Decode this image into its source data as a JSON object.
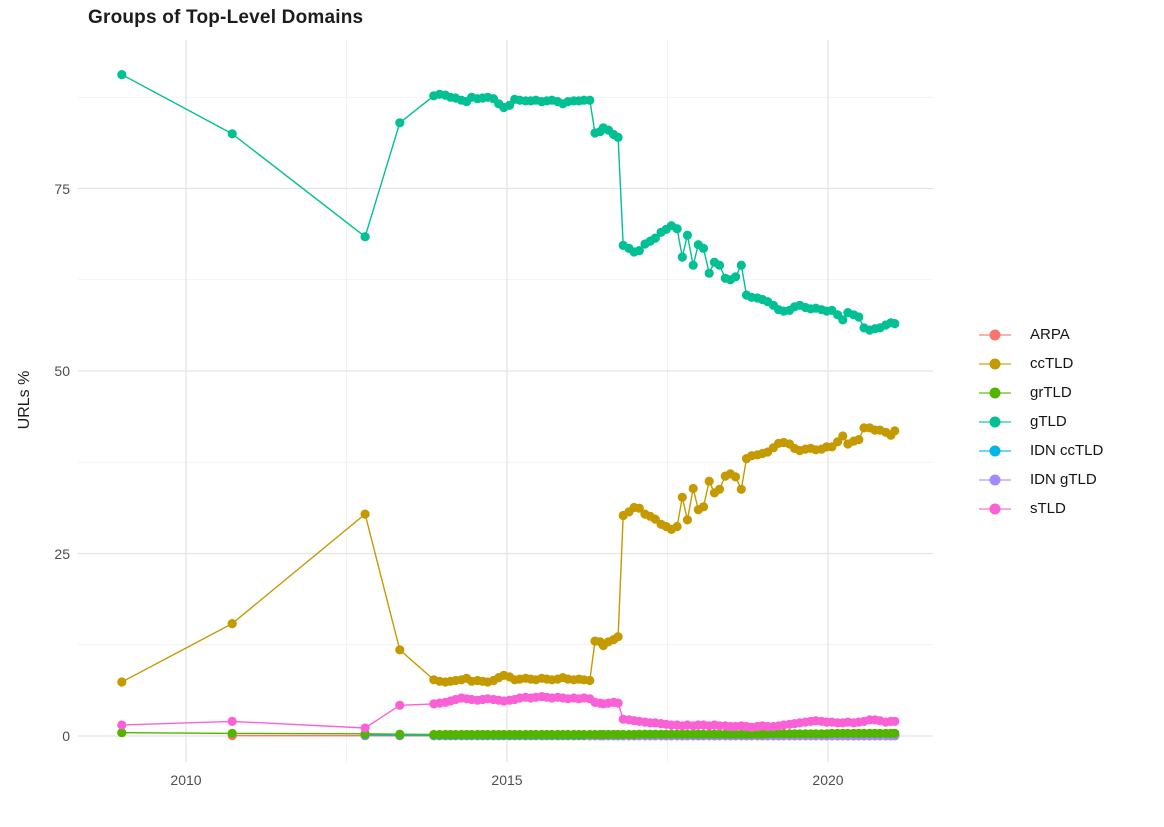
{
  "title": "Groups of Top-Level Domains",
  "axes": {
    "y_label": "URLs %",
    "y_ticks": [
      "0",
      "25",
      "50",
      "75"
    ],
    "x_ticks": [
      "2010",
      "2015",
      "2020"
    ]
  },
  "legend": {
    "items": [
      {
        "label": "ARPA",
        "color": "#F8766D"
      },
      {
        "label": "ccTLD",
        "color": "#C49A00"
      },
      {
        "label": "grTLD",
        "color": "#53B400"
      },
      {
        "label": "gTLD",
        "color": "#00C094"
      },
      {
        "label": "IDN ccTLD",
        "color": "#00B6EB"
      },
      {
        "label": "IDN gTLD",
        "color": "#A58AFF"
      },
      {
        "label": "sTLD",
        "color": "#FB61D7"
      }
    ]
  },
  "chart_data": {
    "type": "line",
    "title": "Groups of Top-Level Domains",
    "xlabel": "",
    "ylabel": "URLs %",
    "xlim": [
      2008.3,
      2021.6
    ],
    "ylim": [
      -3.5,
      95.3
    ],
    "x_tick_values": [
      2010,
      2015,
      2020
    ],
    "x_minor_ticks": [
      2012.5,
      2017.5
    ],
    "y_tick_values": [
      0,
      25,
      50,
      75
    ],
    "y_minor_ticks": [
      12.5,
      37.5,
      62.5,
      87.5
    ],
    "grid": true,
    "legend_position": "right",
    "marker": "point",
    "x": [
      2009.0,
      2010.72,
      2012.79,
      2013.33,
      2013.86,
      2013.95,
      2014.04,
      2014.12,
      2014.2,
      2014.29,
      2014.37,
      2014.45,
      2014.54,
      2014.62,
      2014.7,
      2014.79,
      2014.87,
      2014.95,
      2015.04,
      2015.12,
      2015.2,
      2015.29,
      2015.37,
      2015.45,
      2015.54,
      2015.62,
      2015.7,
      2015.79,
      2015.87,
      2015.95,
      2016.04,
      2016.12,
      2016.2,
      2016.29,
      2016.37,
      2016.45,
      2016.5,
      2016.58,
      2016.66,
      2016.73,
      2016.81,
      2016.9,
      2016.98,
      2017.06,
      2017.15,
      2017.23,
      2017.31,
      2017.4,
      2017.48,
      2017.56,
      2017.65,
      2017.73,
      2017.81,
      2017.9,
      2017.98,
      2018.06,
      2018.15,
      2018.23,
      2018.31,
      2018.4,
      2018.48,
      2018.56,
      2018.65,
      2018.73,
      2018.81,
      2018.9,
      2018.98,
      2019.06,
      2019.15,
      2019.23,
      2019.31,
      2019.4,
      2019.48,
      2019.56,
      2019.65,
      2019.73,
      2019.81,
      2019.9,
      2019.98,
      2020.06,
      2020.15,
      2020.23,
      2020.31,
      2020.4,
      2020.48,
      2020.56,
      2020.65,
      2020.73,
      2020.81,
      2020.9,
      2020.98,
      2021.04
    ],
    "series": [
      {
        "name": "ARPA",
        "color": "#F8766D",
        "values": [
          null,
          0.05,
          0.04,
          0.03,
          0.03,
          0.03,
          0.03,
          0.03,
          0.03,
          0.03,
          0.03,
          0.03,
          0.03,
          0.03,
          0.03,
          0.03,
          0.03,
          0.03,
          0.03,
          0.03,
          0.03,
          0.03,
          0.03,
          0.03,
          0.03,
          0.03,
          0.03,
          0.03,
          0.03,
          0.03,
          0.03,
          0.03,
          0.03,
          0.03,
          0.03,
          0.03,
          0.03,
          0.03,
          0.03,
          0.03,
          0.03,
          0.03,
          0.03,
          0.03,
          0.03,
          0.03,
          0.03,
          0.03,
          0.03,
          0.03,
          0.03,
          0.03,
          0.03,
          0.03,
          0.03,
          0.03,
          0.03,
          0.03,
          0.03,
          0.03,
          0.03,
          0.03,
          0.03,
          0.03,
          0.03,
          0.03,
          0.03,
          0.03,
          0.03,
          0.03,
          0.03,
          0.03,
          0.03,
          0.03,
          0.03,
          0.03,
          0.03,
          0.03,
          0.03,
          0.03,
          0.03,
          0.03,
          0.03,
          0.03,
          0.03,
          0.03,
          0.03,
          0.03,
          0.03,
          0.03,
          0.03,
          0.03
        ]
      },
      {
        "name": "ccTLD",
        "color": "#C49A00",
        "values": [
          7.4,
          15.4,
          30.4,
          11.8,
          7.7,
          7.5,
          7.4,
          7.5,
          7.6,
          7.7,
          7.9,
          7.5,
          7.6,
          7.5,
          7.4,
          7.6,
          8.0,
          8.3,
          8.1,
          7.7,
          7.8,
          7.9,
          7.8,
          7.7,
          7.9,
          7.8,
          7.7,
          7.8,
          8.0,
          7.8,
          7.7,
          7.8,
          7.7,
          7.6,
          13.0,
          12.9,
          12.4,
          12.9,
          13.2,
          13.6,
          30.2,
          30.7,
          31.3,
          31.2,
          30.4,
          30.1,
          29.7,
          29.0,
          28.7,
          28.3,
          28.7,
          32.7,
          29.6,
          33.9,
          31.0,
          31.4,
          34.9,
          33.3,
          33.8,
          35.6,
          35.9,
          35.5,
          33.8,
          38.0,
          38.4,
          38.5,
          38.7,
          38.9,
          39.5,
          40.1,
          40.2,
          40.0,
          39.4,
          39.1,
          39.3,
          39.4,
          39.2,
          39.3,
          39.6,
          39.6,
          40.3,
          41.1,
          40.0,
          40.4,
          40.6,
          42.2,
          42.2,
          41.9,
          41.9,
          41.6,
          41.2,
          41.8
        ]
      },
      {
        "name": "grTLD",
        "color": "#53B400",
        "values": [
          0.45,
          0.35,
          0.3,
          0.25,
          0.2,
          0.2,
          0.2,
          0.2,
          0.2,
          0.2,
          0.2,
          0.2,
          0.2,
          0.2,
          0.2,
          0.2,
          0.2,
          0.2,
          0.2,
          0.2,
          0.2,
          0.2,
          0.2,
          0.2,
          0.2,
          0.2,
          0.2,
          0.2,
          0.2,
          0.2,
          0.2,
          0.2,
          0.2,
          0.2,
          0.2,
          0.2,
          0.2,
          0.2,
          0.2,
          0.2,
          0.2,
          0.2,
          0.2,
          0.25,
          0.25,
          0.25,
          0.25,
          0.25,
          0.25,
          0.25,
          0.25,
          0.25,
          0.25,
          0.25,
          0.25,
          0.25,
          0.25,
          0.25,
          0.25,
          0.25,
          0.25,
          0.25,
          0.25,
          0.25,
          0.25,
          0.25,
          0.25,
          0.3,
          0.3,
          0.3,
          0.3,
          0.3,
          0.3,
          0.3,
          0.3,
          0.3,
          0.3,
          0.3,
          0.3,
          0.35,
          0.35,
          0.35,
          0.35,
          0.35,
          0.35,
          0.35,
          0.35,
          0.35,
          0.35,
          0.35,
          0.35,
          0.35
        ]
      },
      {
        "name": "gTLD",
        "color": "#00C094",
        "values": [
          90.6,
          82.5,
          68.4,
          84.0,
          87.7,
          87.9,
          87.8,
          87.5,
          87.4,
          87.1,
          86.9,
          87.5,
          87.3,
          87.4,
          87.5,
          87.3,
          86.6,
          86.1,
          86.4,
          87.2,
          87.1,
          87.0,
          87.0,
          87.1,
          86.9,
          87.0,
          87.1,
          86.9,
          86.6,
          86.9,
          87.0,
          87.0,
          87.1,
          87.1,
          82.6,
          82.8,
          83.3,
          83.0,
          82.4,
          82.0,
          67.2,
          66.8,
          66.3,
          66.5,
          67.4,
          67.8,
          68.2,
          69.0,
          69.4,
          69.9,
          69.5,
          65.6,
          68.6,
          64.5,
          67.3,
          66.8,
          63.4,
          64.9,
          64.5,
          62.7,
          62.5,
          62.9,
          64.5,
          60.4,
          60.1,
          60.0,
          59.8,
          59.5,
          59.0,
          58.4,
          58.2,
          58.3,
          58.8,
          59.0,
          58.7,
          58.5,
          58.6,
          58.4,
          58.2,
          58.3,
          57.7,
          57.0,
          58.0,
          57.7,
          57.4,
          55.9,
          55.6,
          55.8,
          55.9,
          56.3,
          56.6,
          56.5
        ]
      },
      {
        "name": "IDN ccTLD",
        "color": "#00B6EB",
        "values": [
          null,
          null,
          0.15,
          0.1,
          0.08,
          0.08,
          0.08,
          0.08,
          0.08,
          0.08,
          0.08,
          0.08,
          0.08,
          0.08,
          0.08,
          0.08,
          0.08,
          0.08,
          0.08,
          0.08,
          0.08,
          0.08,
          0.08,
          0.08,
          0.08,
          0.08,
          0.08,
          0.08,
          0.08,
          0.08,
          0.08,
          0.08,
          0.08,
          0.08,
          0.08,
          0.08,
          0.08,
          0.08,
          0.08,
          0.08,
          0.08,
          0.08,
          0.08,
          0.08,
          0.08,
          0.08,
          0.08,
          0.08,
          0.08,
          0.08,
          0.08,
          0.08,
          0.08,
          0.08,
          0.08,
          0.08,
          0.08,
          0.08,
          0.08,
          0.08,
          0.08,
          0.08,
          0.08,
          0.08,
          0.08,
          0.08,
          0.08,
          0.08,
          0.08,
          0.08,
          0.08,
          0.08,
          0.08,
          0.08,
          0.08,
          0.08,
          0.08,
          0.08,
          0.08,
          0.08,
          0.08,
          0.08,
          0.08,
          0.08,
          0.08,
          0.08,
          0.08,
          0.08,
          0.08,
          0.08,
          0.08,
          0.08
        ]
      },
      {
        "name": "IDN gTLD",
        "color": "#A58AFF",
        "values": [
          null,
          null,
          null,
          null,
          null,
          null,
          null,
          null,
          null,
          null,
          null,
          null,
          null,
          null,
          null,
          null,
          null,
          null,
          null,
          null,
          null,
          null,
          null,
          null,
          null,
          null,
          null,
          null,
          null,
          null,
          null,
          null,
          null,
          0.02,
          0.02,
          0.02,
          0.02,
          0.02,
          0.02,
          0.02,
          0.02,
          0.02,
          0.02,
          0.02,
          0.02,
          0.02,
          0.02,
          0.02,
          0.02,
          0.02,
          0.02,
          0.02,
          0.02,
          0.02,
          0.02,
          0.02,
          0.02,
          0.02,
          0.02,
          0.02,
          0.02,
          0.02,
          0.02,
          0.02,
          0.02,
          0.02,
          0.02,
          0.02,
          0.02,
          0.02,
          0.02,
          0.02,
          0.02,
          0.02,
          0.02,
          0.02,
          0.02,
          0.02,
          0.02,
          0.02,
          0.02,
          0.02,
          0.02,
          0.02,
          0.02,
          0.02,
          0.02,
          0.02,
          0.02,
          0.02,
          0.02,
          0.02
        ]
      },
      {
        "name": "sTLD",
        "color": "#FB61D7",
        "values": [
          1.5,
          2.0,
          1.1,
          4.2,
          4.4,
          4.5,
          4.6,
          4.8,
          5.0,
          5.2,
          5.1,
          5.0,
          4.9,
          5.0,
          5.1,
          5.0,
          4.9,
          4.8,
          4.9,
          5.0,
          5.2,
          5.3,
          5.2,
          5.3,
          5.4,
          5.3,
          5.2,
          5.3,
          5.2,
          5.1,
          5.2,
          5.1,
          5.2,
          5.1,
          4.6,
          4.5,
          4.4,
          4.5,
          4.6,
          4.5,
          2.3,
          2.2,
          2.1,
          2.0,
          1.9,
          1.8,
          1.8,
          1.7,
          1.6,
          1.5,
          1.5,
          1.4,
          1.5,
          1.4,
          1.5,
          1.5,
          1.4,
          1.5,
          1.4,
          1.4,
          1.3,
          1.3,
          1.4,
          1.3,
          1.2,
          1.3,
          1.4,
          1.3,
          1.3,
          1.4,
          1.5,
          1.6,
          1.7,
          1.8,
          1.9,
          2.0,
          2.1,
          2.0,
          1.9,
          1.9,
          1.8,
          1.8,
          1.9,
          1.8,
          1.9,
          2.0,
          2.2,
          2.2,
          2.1,
          1.9,
          2.0,
          2.0
        ]
      }
    ]
  }
}
